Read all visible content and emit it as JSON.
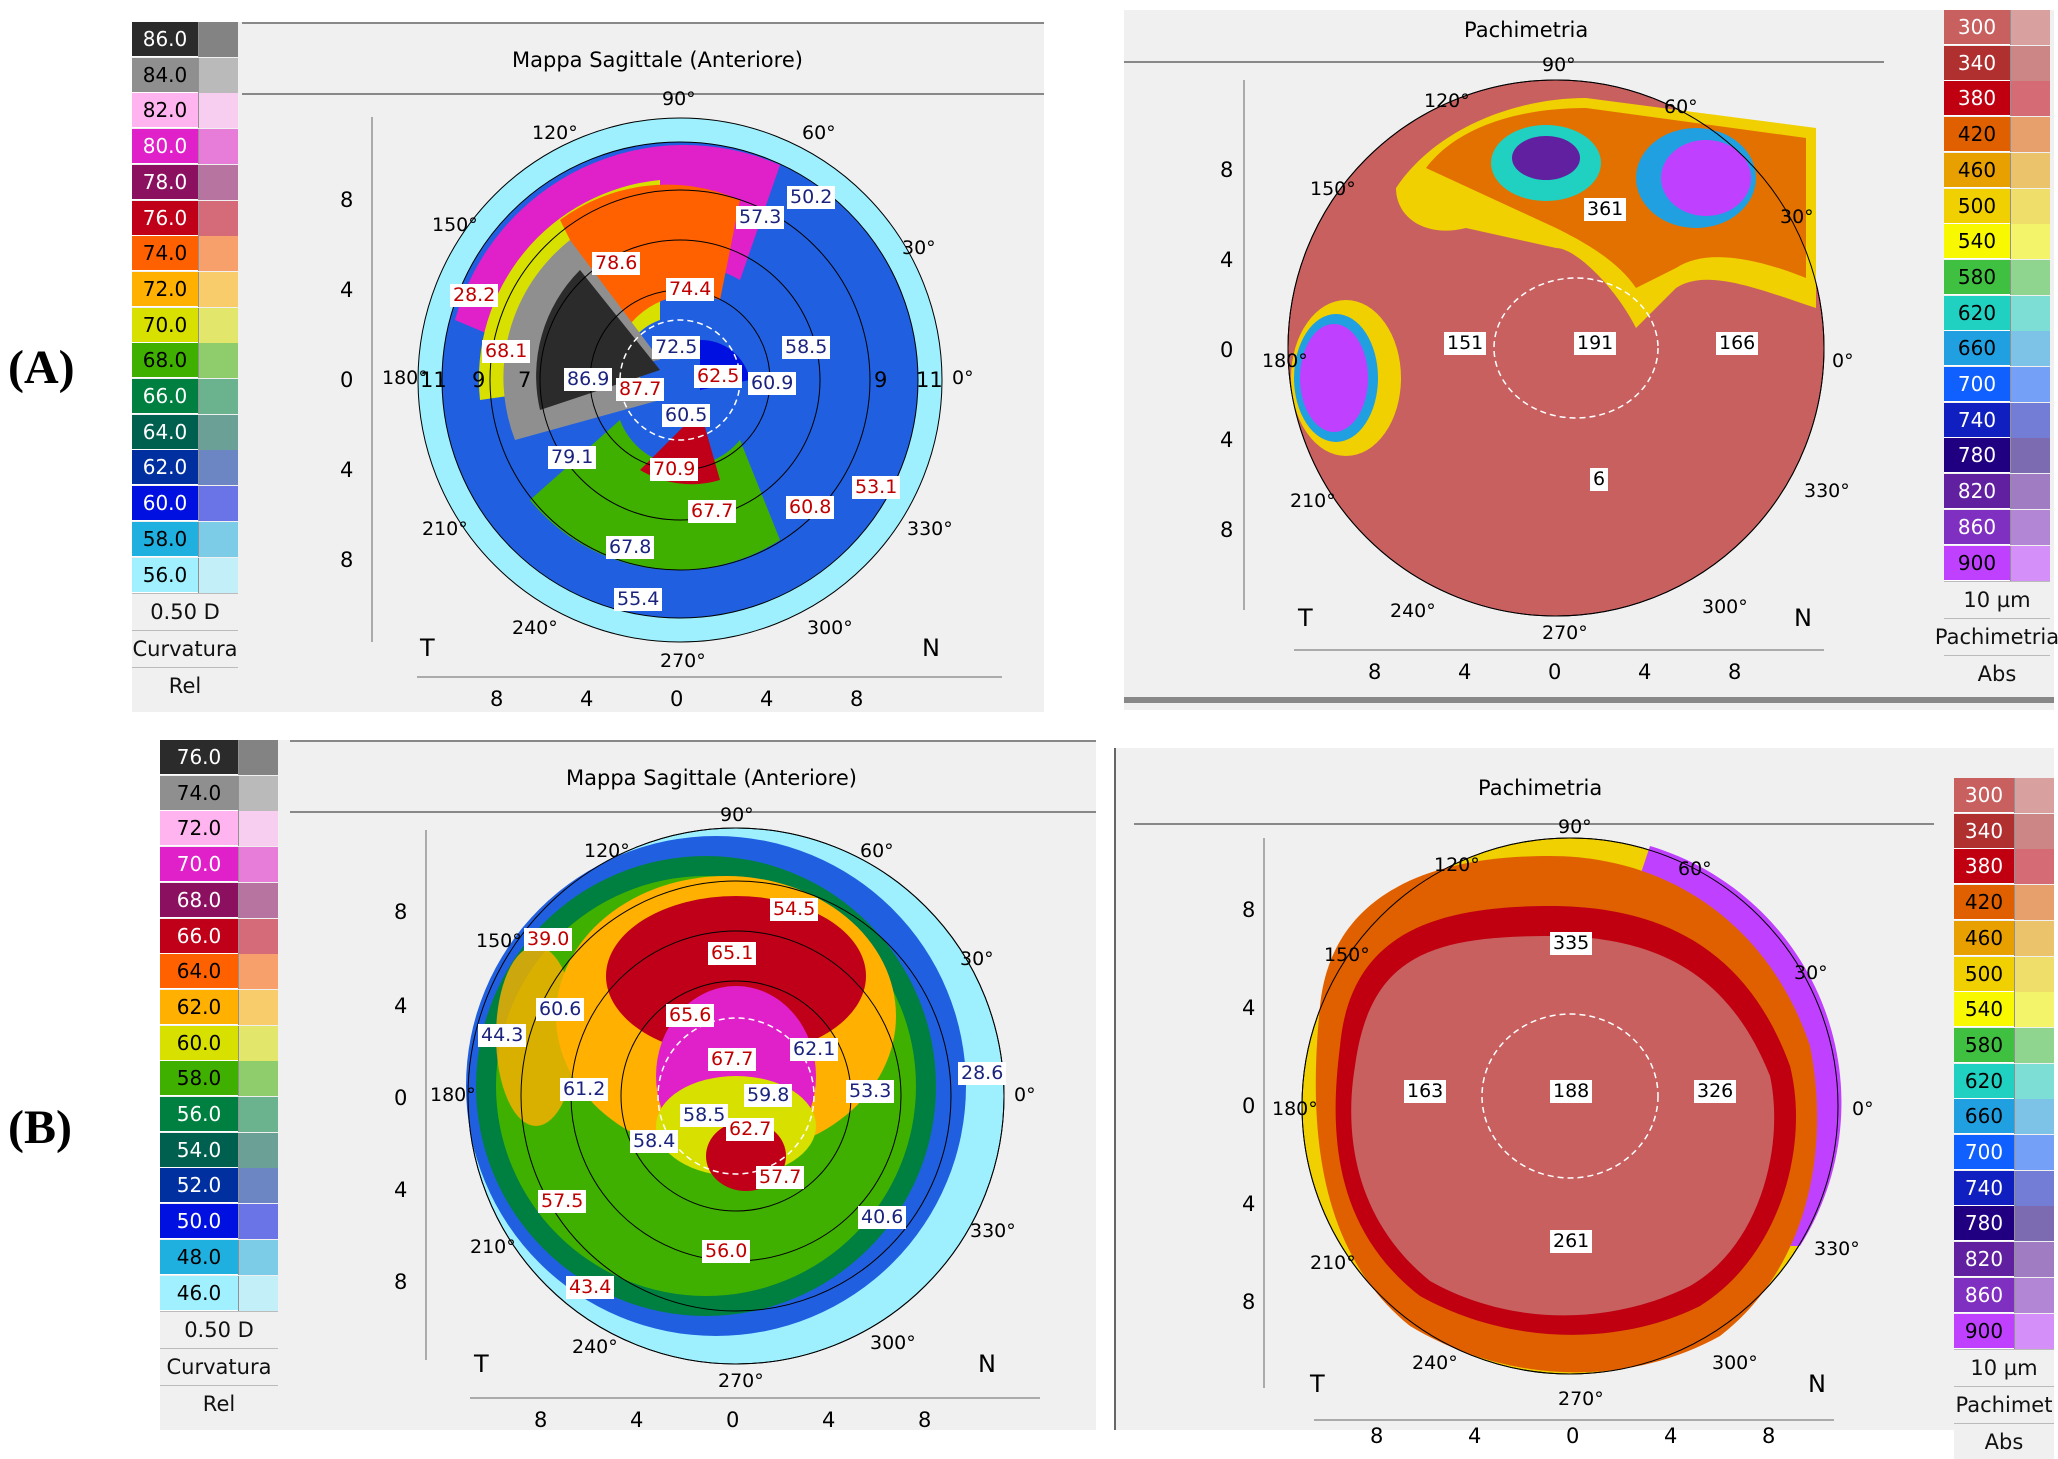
{
  "labels": {
    "a": "(A)",
    "b": "(B)"
  },
  "panelA": {
    "sagittal": {
      "title": "Mappa Sagittale (Anteriore)",
      "scale": [
        "86.0",
        "84.0",
        "82.0",
        "80.0",
        "78.0",
        "76.0",
        "74.0",
        "72.0",
        "70.0",
        "68.0",
        "66.0",
        "64.0",
        "62.0",
        "60.0",
        "58.0",
        "56.0"
      ],
      "scale_colors": [
        "#2b2b2b",
        "#8f8f8f",
        "#ffb4f0",
        "#e020c8",
        "#8c1060",
        "#c00018",
        "#ff6000",
        "#ffb000",
        "#d8e000",
        "#40b000",
        "#008040",
        "#006050",
        "#0030a0",
        "#0010e0",
        "#20b0e0",
        "#a0f0ff"
      ],
      "step": "0.50 D",
      "mode": "Curvatura",
      "type": "Rel",
      "axis_ticks_y": [
        "8",
        "4",
        "0",
        "4",
        "8"
      ],
      "axis_ticks_x": [
        "8",
        "4",
        "0",
        "4",
        "8"
      ],
      "T": "T",
      "N": "N",
      "degrees": [
        "90°",
        "120°",
        "60°",
        "150°",
        "30°",
        "180°",
        "0°",
        "210°",
        "330°",
        "240°",
        "300°",
        "270°"
      ],
      "ring_labels": [
        "11",
        "9",
        "7",
        "9",
        "11"
      ],
      "values": [
        "57.3",
        "50.2",
        "78.6",
        "74.4",
        "28.2",
        "68.1",
        "72.5",
        "58.5",
        "86.9",
        "87.7",
        "62.5",
        "60.9",
        "60.5",
        "79.1",
        "70.9",
        "60.8",
        "53.1",
        "67.7",
        "67.8",
        "55.4"
      ]
    },
    "pachy": {
      "title": "Pachimetria",
      "scale": [
        "300",
        "340",
        "380",
        "420",
        "460",
        "500",
        "540",
        "580",
        "620",
        "660",
        "700",
        "740",
        "780",
        "820",
        "860",
        "900"
      ],
      "scale_colors": [
        "#c86060",
        "#b03030",
        "#c00010",
        "#e06000",
        "#e8a000",
        "#f0d000",
        "#f8f800",
        "#40c040",
        "#20d0c0",
        "#20a0e0",
        "#1060ff",
        "#1020c0",
        "#200080",
        "#6020a0",
        "#8030c0",
        "#c040ff"
      ],
      "step": "10 µm",
      "mode": "Pachimetria",
      "type": "Abs",
      "axis_ticks_y": [
        "8",
        "4",
        "0",
        "4",
        "8"
      ],
      "axis_ticks_x": [
        "8",
        "4",
        "0",
        "4",
        "8"
      ],
      "T": "T",
      "N": "N",
      "degrees": [
        "90°",
        "120°",
        "60°",
        "150°",
        "30°",
        "180°",
        "0°",
        "210°",
        "330°",
        "240°",
        "300°",
        "270°"
      ],
      "values": [
        "361",
        "151",
        "191",
        "166",
        "6"
      ]
    }
  },
  "panelB": {
    "sagittal": {
      "title": "Mappa Sagittale (Anteriore)",
      "scale": [
        "76.0",
        "74.0",
        "72.0",
        "70.0",
        "68.0",
        "66.0",
        "64.0",
        "62.0",
        "60.0",
        "58.0",
        "56.0",
        "54.0",
        "52.0",
        "50.0",
        "48.0",
        "46.0"
      ],
      "scale_colors": [
        "#2b2b2b",
        "#8f8f8f",
        "#ffb4f0",
        "#e020c8",
        "#8c1060",
        "#c00018",
        "#ff6000",
        "#ffb000",
        "#d8e000",
        "#40b000",
        "#008040",
        "#006050",
        "#0030a0",
        "#0010e0",
        "#20b0e0",
        "#a0f0ff"
      ],
      "step": "0.50 D",
      "mode": "Curvatura",
      "type": "Rel",
      "axis_ticks_y": [
        "8",
        "4",
        "0",
        "4",
        "8"
      ],
      "axis_ticks_x": [
        "8",
        "4",
        "0",
        "4",
        "8"
      ],
      "T": "T",
      "N": "N",
      "degrees": [
        "90°",
        "120°",
        "60°",
        "150°",
        "30°",
        "180°",
        "0°",
        "210°",
        "330°",
        "240°",
        "300°",
        "270°"
      ],
      "values": [
        "54.5",
        "39.0",
        "65.1",
        "60.6",
        "44.3",
        "65.6",
        "67.7",
        "62.1",
        "61.2",
        "59.8",
        "53.3",
        "28.6",
        "58.5",
        "62.7",
        "58.4",
        "57.7",
        "57.5",
        "56.0",
        "40.6",
        "43.4"
      ]
    },
    "pachy": {
      "title": "Pachimetria",
      "scale": [
        "300",
        "340",
        "380",
        "420",
        "460",
        "500",
        "540",
        "580",
        "620",
        "660",
        "700",
        "740",
        "780",
        "820",
        "860",
        "900"
      ],
      "scale_colors": [
        "#c86060",
        "#b03030",
        "#c00010",
        "#e06000",
        "#e8a000",
        "#f0d000",
        "#f8f800",
        "#40c040",
        "#20d0c0",
        "#20a0e0",
        "#1060ff",
        "#1020c0",
        "#200080",
        "#6020a0",
        "#8030c0",
        "#c040ff"
      ],
      "step": "10 µm",
      "mode": "Pachimet",
      "type": "Abs",
      "axis_ticks_y": [
        "8",
        "4",
        "0",
        "4",
        "8"
      ],
      "axis_ticks_x": [
        "8",
        "4",
        "0",
        "4",
        "8"
      ],
      "T": "T",
      "N": "N",
      "degrees": [
        "90°",
        "120°",
        "60°",
        "150°",
        "30°",
        "180°",
        "0°",
        "210°",
        "330°",
        "240°",
        "300°",
        "270°"
      ],
      "values": [
        "335",
        "163",
        "188",
        "326",
        "261"
      ]
    }
  }
}
